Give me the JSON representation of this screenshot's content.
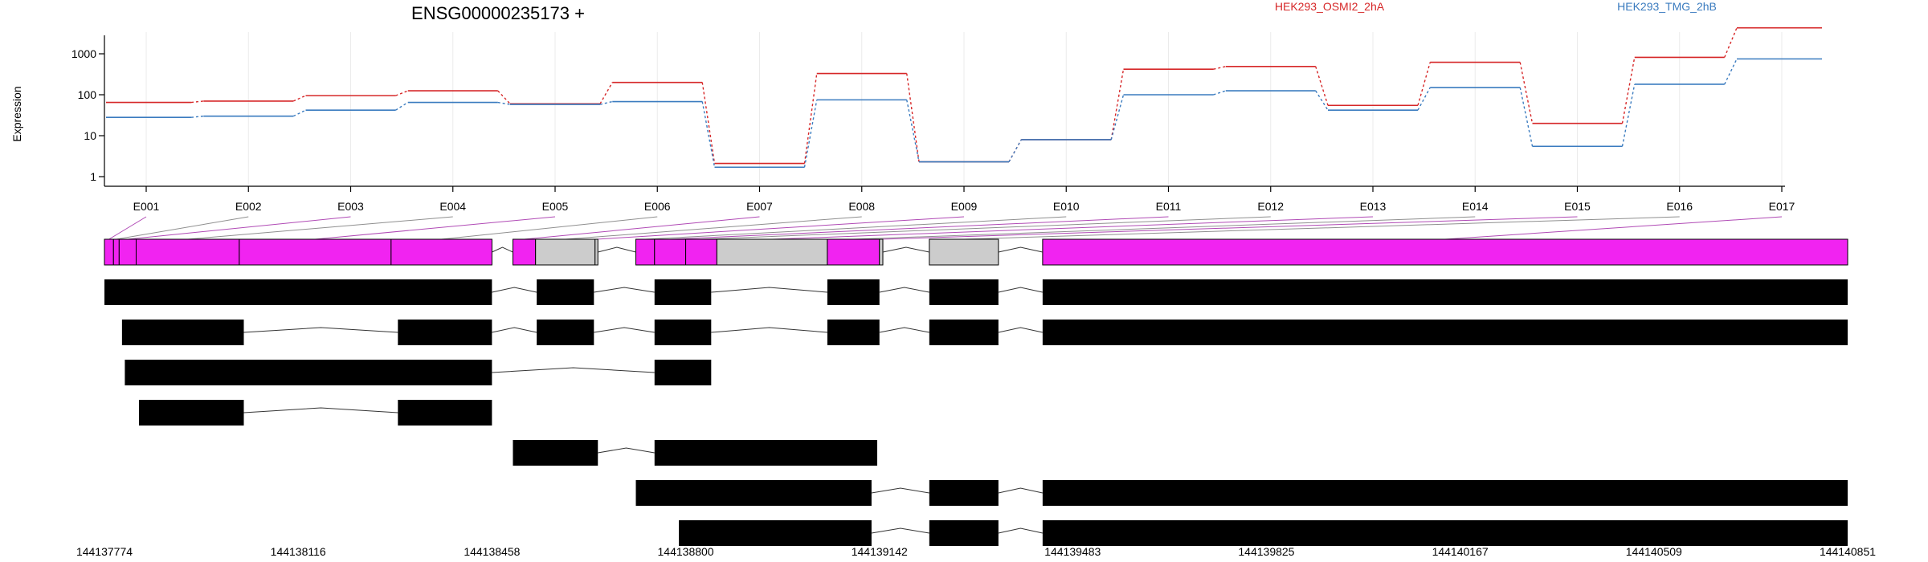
{
  "chart_data": {
    "type": "line",
    "title": "ENSG00000235173 +",
    "ylabel": "Expression",
    "y_scale": "log",
    "y_ticks": [
      "1",
      "10",
      "100",
      "1000"
    ],
    "grid": true,
    "legend_position": "top-right",
    "categories": [
      "E001",
      "E002",
      "E003",
      "E004",
      "E005",
      "E006",
      "E007",
      "E008",
      "E009",
      "E010",
      "E011",
      "E012",
      "E013",
      "E014",
      "E015",
      "E016",
      "E017"
    ],
    "series": [
      {
        "name": "HEK293_OSMI2_2hA",
        "color": "#d62728",
        "values": [
          65,
          70,
          95,
          125,
          60,
          200,
          2.1,
          330,
          2.3,
          8,
          420,
          490,
          55,
          620,
          20,
          820,
          4300
        ]
      },
      {
        "name": "HEK293_TMG_2hB",
        "color": "#3a7bbf",
        "values": [
          28,
          30,
          42,
          65,
          58,
          68,
          1.7,
          75,
          2.3,
          8,
          100,
          125,
          42,
          150,
          5.5,
          180,
          750
        ]
      }
    ],
    "exons": [
      {
        "id": "E001",
        "start": 144137774,
        "end": 144137790
      },
      {
        "id": "E002",
        "start": 144137790,
        "end": 144137800
      },
      {
        "id": "E003",
        "start": 144137800,
        "end": 144137830
      },
      {
        "id": "E004",
        "start": 144137830,
        "end": 144138012
      },
      {
        "id": "E005",
        "start": 144138012,
        "end": 144138280
      },
      {
        "id": "E006",
        "start": 144138280,
        "end": 144138458
      },
      {
        "id": "E007",
        "start": 144138495,
        "end": 144138535
      },
      {
        "id": "E008",
        "start": 144138535,
        "end": 144138640
      },
      {
        "id": "E009",
        "start": 144138640,
        "end": 144138645
      },
      {
        "id": "E010",
        "start": 144138712,
        "end": 144138745
      },
      {
        "id": "E011",
        "start": 144138745,
        "end": 144138800
      },
      {
        "id": "E012",
        "start": 144138800,
        "end": 144138855
      },
      {
        "id": "E013",
        "start": 144138855,
        "end": 144139050
      },
      {
        "id": "E014",
        "start": 144139050,
        "end": 144139142
      },
      {
        "id": "E015",
        "start": 144139142,
        "end": 144139148
      },
      {
        "id": "E016",
        "start": 144139230,
        "end": 144139352
      },
      {
        "id": "E017",
        "start": 144139430,
        "end": 144140851
      }
    ],
    "transcripts": [
      [
        [
          144137774,
          144138458
        ],
        [
          144138537,
          144138638
        ],
        [
          144138745,
          144138845
        ],
        [
          144139050,
          144139142
        ],
        [
          144139230,
          144139352
        ],
        [
          144139430,
          144140851
        ]
      ],
      [
        [
          144137805,
          144138020
        ],
        [
          144138292,
          144138458
        ],
        [
          144138537,
          144138638
        ],
        [
          144138745,
          144138845
        ],
        [
          144139050,
          144139142
        ],
        [
          144139230,
          144139352
        ],
        [
          144139430,
          144140851
        ]
      ],
      [
        [
          144137810,
          144138458
        ],
        [
          144138745,
          144138845
        ]
      ],
      [
        [
          144137835,
          144138020
        ],
        [
          144138292,
          144138458
        ]
      ],
      [
        [
          144138495,
          144138645
        ],
        [
          144138745,
          144139138
        ]
      ],
      [
        [
          144138712,
          144139128
        ],
        [
          144139230,
          144139352
        ],
        [
          144139430,
          144140851
        ]
      ],
      [
        [
          144138788,
          144139128
        ],
        [
          144139230,
          144139352
        ],
        [
          144139430,
          144140851
        ]
      ]
    ],
    "genomic_ticks": [
      "144137774",
      "144138116",
      "144138458",
      "144138800",
      "144139142",
      "144139483",
      "144139825",
      "144140167",
      "144140509",
      "144140851"
    ]
  }
}
